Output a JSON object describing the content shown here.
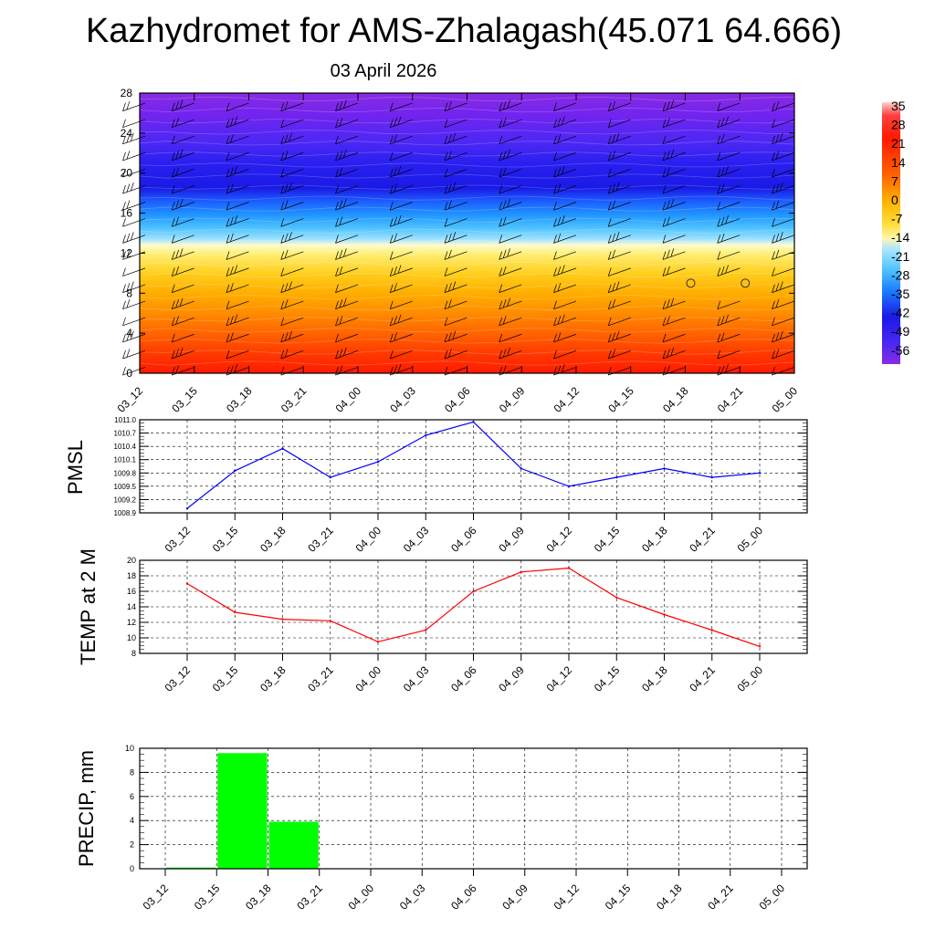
{
  "title": "Kazhydromet for AMS-Zhalagash(45.071 64.666)",
  "subtitle": "03 April 2026",
  "chart_data": [
    {
      "type": "heatmap",
      "name": "cross-section",
      "title": "",
      "xlabel": "",
      "ylabel": "",
      "x_ticks": [
        "03_12",
        "03_15",
        "03_18",
        "03_21",
        "04_00",
        "04_03",
        "04_06",
        "04_09",
        "04_12",
        "04_15",
        "04_18",
        "04_21",
        "05_00"
      ],
      "y_ticks": [
        0,
        4,
        8,
        12,
        16,
        20,
        24,
        28
      ],
      "ylim": [
        0,
        28
      ],
      "colorbar_labels": [
        "35",
        "28",
        "21",
        "14",
        "7",
        "0",
        "-7",
        "-14",
        "-21",
        "-28",
        "-35",
        "-42",
        "-49",
        "-56"
      ],
      "layers": [
        {
          "level": 0,
          "value": 24,
          "color": "#ff1a00"
        },
        {
          "level": 2,
          "value": 20,
          "color": "#ff3a00"
        },
        {
          "level": 4,
          "value": 14,
          "color": "#ff6400"
        },
        {
          "level": 6,
          "value": 10,
          "color": "#ff8c00"
        },
        {
          "level": 8,
          "value": 5,
          "color": "#ffae00"
        },
        {
          "level": 10,
          "value": 0,
          "color": "#ffcf1e"
        },
        {
          "level": 12,
          "value": -7,
          "color": "#fff07a"
        },
        {
          "level": 12.8,
          "value": -14,
          "color": "#fffbd0"
        },
        {
          "level": 13.4,
          "value": -21,
          "color": "#9fe2ff"
        },
        {
          "level": 14.5,
          "value": -28,
          "color": "#4fc3ff"
        },
        {
          "level": 15.8,
          "value": -35,
          "color": "#2196ff"
        },
        {
          "level": 17.2,
          "value": -42,
          "color": "#1c5cff"
        },
        {
          "level": 18.5,
          "value": -49,
          "color": "#1a1ae6"
        },
        {
          "level": 21,
          "value": -56,
          "color": "#2a1ff0"
        },
        {
          "level": 23,
          "value": -56,
          "color": "#4a28f5"
        },
        {
          "level": 26,
          "value": -60,
          "color": "#7424ee"
        },
        {
          "level": 28,
          "value": -62,
          "color": "#8a2be2"
        }
      ],
      "calm_markers": [
        {
          "x": "04_18",
          "level": 9
        },
        {
          "x": "04_21",
          "level": 9
        }
      ]
    },
    {
      "type": "line",
      "name": "pmsl",
      "ylabel": "PMSL",
      "categories": [
        "03_12",
        "03_15",
        "03_18",
        "03_21",
        "04_00",
        "04_03",
        "04_06",
        "04_09",
        "04_12",
        "04_15",
        "04_18",
        "04_21",
        "05_00"
      ],
      "values": [
        1009.0,
        1009.85,
        1010.35,
        1009.7,
        1010.05,
        1010.65,
        1010.95,
        1009.9,
        1009.5,
        1009.7,
        1009.9,
        1009.7,
        1009.8
      ],
      "ylim": [
        1008.9,
        1011.0
      ],
      "y_ticks": [
        "1008.9",
        "1009.2",
        "1009.5",
        "1009.8",
        "1010.1",
        "1010.4",
        "1010.7",
        "1011.0"
      ],
      "color": "#0000ff"
    },
    {
      "type": "line",
      "name": "temp",
      "ylabel": "TEMP at 2 M",
      "categories": [
        "03_12",
        "03_15",
        "03_18",
        "03_21",
        "04_00",
        "04_03",
        "04_06",
        "04_09",
        "04_12",
        "04_15",
        "04_18",
        "04_21",
        "05_00"
      ],
      "values": [
        17.0,
        13.3,
        12.4,
        12.2,
        9.5,
        11.0,
        16.0,
        18.5,
        19.0,
        15.2,
        13.0,
        11.0,
        8.9
      ],
      "ylim": [
        8,
        20
      ],
      "y_ticks": [
        "8",
        "10",
        "12",
        "14",
        "16",
        "18",
        "20"
      ],
      "color": "#ff0000"
    },
    {
      "type": "bar",
      "name": "precip",
      "ylabel": "PRECIP, mm",
      "categories": [
        "03_12",
        "03_15",
        "03_18",
        "03_21",
        "04_00",
        "04_03",
        "04_06",
        "04_09",
        "04_12",
        "04_15",
        "04_18",
        "04_21",
        "05_00"
      ],
      "values": [
        0,
        0.1,
        9.6,
        3.9,
        0,
        0,
        0,
        0,
        0,
        0,
        0,
        0,
        0
      ],
      "ylim": [
        0,
        10
      ],
      "y_ticks": [
        "0",
        "2",
        "4",
        "6",
        "8",
        "10"
      ],
      "color": "#00ff00"
    }
  ]
}
